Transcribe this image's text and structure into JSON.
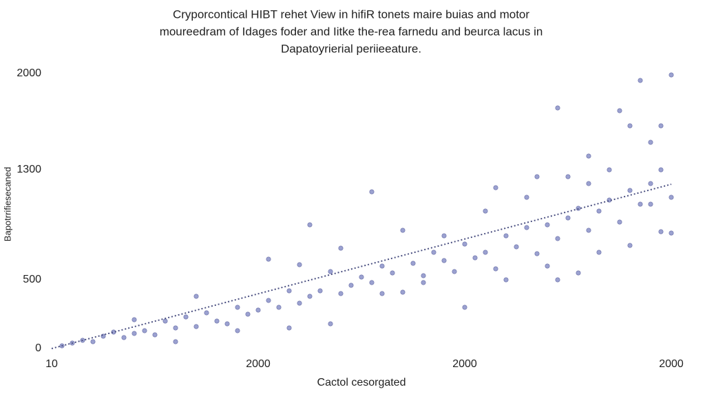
{
  "chart_data": {
    "type": "scatter",
    "title": [
      "Cryporcontical HIBT rehet View in hifiR tonets maire buias and motor",
      "moureedram of Idages foder and Iitke the-rea farnedu and beurca lacus in",
      "Dapatoyrierial periieeature."
    ],
    "xlabel": "Cactol cesorgated",
    "ylabel": "Bapotrrifiesecaned",
    "xlim": [
      0,
      3000
    ],
    "ylim": [
      0,
      2000
    ],
    "xticks": [
      {
        "value": 0,
        "label": "10"
      },
      {
        "value": 1000,
        "label": "2000"
      },
      {
        "value": 2000,
        "label": "2000"
      },
      {
        "value": 3000,
        "label": "2000"
      }
    ],
    "yticks": [
      0,
      500,
      1300,
      2000
    ],
    "color": "#8a90c8",
    "trendline": {
      "color": "#4a4f80",
      "x": [
        0,
        3000
      ],
      "y": [
        0,
        1195
      ]
    },
    "x": [
      50,
      100,
      150,
      200,
      250,
      300,
      350,
      400,
      450,
      500,
      550,
      600,
      650,
      700,
      750,
      800,
      850,
      900,
      950,
      1000,
      1050,
      1100,
      1150,
      1200,
      1250,
      1300,
      1350,
      1400,
      1450,
      1500,
      1550,
      1600,
      1650,
      1700,
      1750,
      1800,
      1850,
      1900,
      1950,
      2000,
      2050,
      2100,
      2150,
      2200,
      2250,
      2300,
      2350,
      2400,
      2450,
      2500,
      2550,
      2600,
      2650,
      2700,
      2750,
      2800,
      2850,
      2900,
      2950,
      3000,
      1600,
      1700,
      1800,
      2000,
      2100,
      2200,
      2300,
      2400,
      2450,
      2550,
      2600,
      2650,
      2750,
      2800,
      2850,
      2900,
      2950,
      3000,
      2700,
      2500,
      1550,
      1250,
      1050,
      900,
      2350,
      2450,
      2800,
      2950,
      3000,
      1900,
      1400,
      1150,
      700,
      600,
      400,
      1200,
      1350,
      2150,
      2600,
      2900
    ],
    "values": [
      20,
      40,
      60,
      50,
      90,
      120,
      80,
      110,
      130,
      100,
      200,
      150,
      230,
      160,
      260,
      200,
      180,
      300,
      250,
      280,
      350,
      300,
      420,
      330,
      380,
      420,
      560,
      400,
      460,
      520,
      480,
      600,
      550,
      410,
      620,
      530,
      700,
      640,
      560,
      760,
      660,
      700,
      580,
      820,
      740,
      880,
      690,
      900,
      800,
      950,
      1020,
      860,
      1000,
      1080,
      920,
      1150,
      1050,
      1200,
      1300,
      1100,
      400,
      860,
      480,
      300,
      1000,
      500,
      1100,
      600,
      1750,
      550,
      1400,
      700,
      1730,
      750,
      1950,
      1500,
      1620,
      1990,
      1300,
      1250,
      1140,
      900,
      650,
      130,
      1250,
      500,
      1620,
      850,
      840,
      820,
      730,
      150,
      380,
      50,
      210,
      610,
      180,
      1170,
      1200,
      1050
    ]
  }
}
